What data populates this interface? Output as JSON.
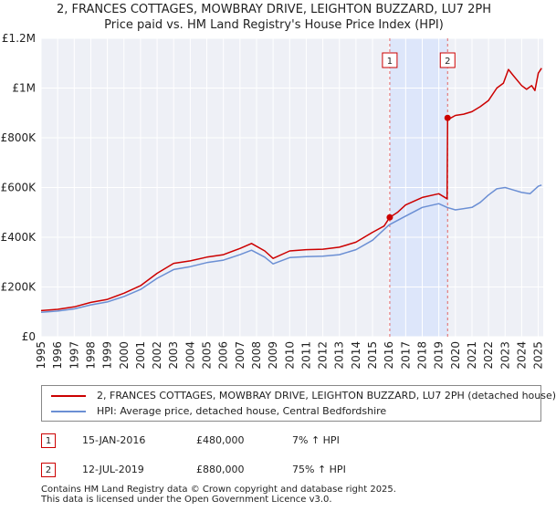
{
  "header": {
    "title_line1": "2, FRANCES COTTAGES, MOWBRAY DRIVE, LEIGHTON BUZZARD, LU7 2PH",
    "title_line2": "Price paid vs. HM Land Registry's House Price Index (HPI)"
  },
  "chart_data": {
    "type": "line",
    "title": "2, FRANCES COTTAGES, MOWBRAY DRIVE, LEIGHTON BUZZARD, LU7 2PH — Price paid vs. HM Land Registry's House Price Index (HPI)",
    "xlim": [
      1995,
      2025.3
    ],
    "ylim": [
      0,
      1200000
    ],
    "y_ticks": [
      {
        "value": 0,
        "label": "£0"
      },
      {
        "value": 200000,
        "label": "£200K"
      },
      {
        "value": 400000,
        "label": "£400K"
      },
      {
        "value": 600000,
        "label": "£600K"
      },
      {
        "value": 800000,
        "label": "£800K"
      },
      {
        "value": 1000000,
        "label": "£1M"
      },
      {
        "value": 1200000,
        "label": "£1.2M"
      }
    ],
    "x_ticks": [
      1995,
      1996,
      1997,
      1998,
      1999,
      2000,
      2001,
      2002,
      2003,
      2004,
      2005,
      2006,
      2007,
      2008,
      2009,
      2010,
      2011,
      2012,
      2013,
      2014,
      2015,
      2016,
      2017,
      2018,
      2019,
      2020,
      2021,
      2022,
      2023,
      2024,
      2025
    ],
    "grid": true,
    "shaded_region": [
      2016.04,
      2019.53
    ],
    "series": [
      {
        "name": "2, FRANCES COTTAGES, MOWBRAY DRIVE, LEIGHTON BUZZARD, LU7 2PH (detached house)",
        "color": "#cc0000",
        "x": [
          1995,
          1996,
          1997,
          1998,
          1999,
          2000,
          2001,
          2002,
          2003,
          2004,
          2005,
          2006,
          2007,
          2007.7,
          2008.5,
          2009,
          2010,
          2011,
          2012,
          2013,
          2014,
          2015,
          2015.7,
          2016.04,
          2016.5,
          2017,
          2018,
          2019,
          2019.5,
          2019.53,
          2019.6,
          2020,
          2020.5,
          2021,
          2021.5,
          2022,
          2022.5,
          2022.9,
          2023.2,
          2023.5,
          2024,
          2024.3,
          2024.6,
          2024.8,
          2025,
          2025.2
        ],
        "y": [
          105000,
          110000,
          120000,
          138000,
          150000,
          175000,
          205000,
          255000,
          295000,
          305000,
          320000,
          330000,
          355000,
          375000,
          345000,
          315000,
          345000,
          350000,
          352000,
          360000,
          380000,
          420000,
          445000,
          480000,
          500000,
          530000,
          560000,
          575000,
          555000,
          880000,
          875000,
          890000,
          895000,
          905000,
          925000,
          950000,
          1000000,
          1020000,
          1075000,
          1050000,
          1010000,
          995000,
          1010000,
          990000,
          1060000,
          1080000
        ]
      },
      {
        "name": "HPI: Average price, detached house, Central Bedfordshire",
        "color": "#6b8fd4",
        "x": [
          1995,
          1996,
          1997,
          1998,
          1999,
          2000,
          2001,
          2002,
          2003,
          2004,
          2005,
          2006,
          2007,
          2007.7,
          2008.5,
          2009,
          2010,
          2011,
          2012,
          2013,
          2014,
          2015,
          2016,
          2017,
          2018,
          2019,
          2019.5,
          2020,
          2021,
          2021.5,
          2022,
          2022.5,
          2023,
          2023.5,
          2024,
          2024.5,
          2025,
          2025.2
        ],
        "y": [
          98000,
          103000,
          112000,
          128000,
          140000,
          162000,
          190000,
          235000,
          270000,
          282000,
          298000,
          308000,
          330000,
          348000,
          320000,
          293000,
          318000,
          322000,
          324000,
          330000,
          350000,
          388000,
          450000,
          485000,
          520000,
          535000,
          520000,
          510000,
          520000,
          540000,
          570000,
          595000,
          600000,
          590000,
          580000,
          575000,
          605000,
          610000
        ]
      }
    ],
    "markers": [
      {
        "label": "1",
        "x": 2016.04,
        "y": 480000
      },
      {
        "label": "2",
        "x": 2019.53,
        "y": 880000
      }
    ]
  },
  "legend": {
    "property_label": "2, FRANCES COTTAGES, MOWBRAY DRIVE, LEIGHTON BUZZARD, LU7 2PH (detached house)",
    "hpi_label": "HPI: Average price, detached house, Central Bedfordshire",
    "property_color": "#cc0000",
    "hpi_color": "#6b8fd4"
  },
  "sales": [
    {
      "num": "1",
      "date": "15-JAN-2016",
      "price": "£480,000",
      "hpi": "7% ↑ HPI"
    },
    {
      "num": "2",
      "date": "12-JUL-2019",
      "price": "£880,000",
      "hpi": "75% ↑ HPI"
    }
  ],
  "footer": {
    "line1": "Contains HM Land Registry data © Crown copyright and database right 2025.",
    "line2": "This data is licensed under the Open Government Licence v3.0."
  }
}
